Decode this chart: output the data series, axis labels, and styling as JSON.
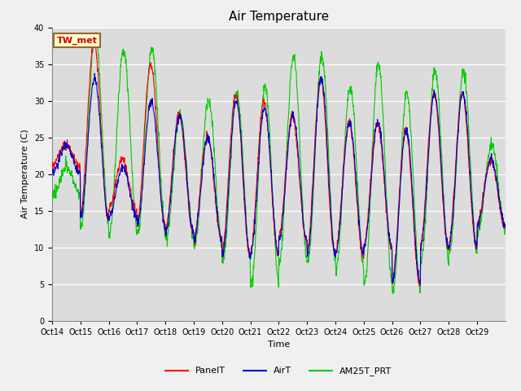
{
  "title": "Air Temperature",
  "ylabel": "Air Temperature (C)",
  "xlabel": "Time",
  "ylim": [
    0,
    40
  ],
  "yticks": [
    0,
    5,
    10,
    15,
    20,
    25,
    30,
    35,
    40
  ],
  "xtick_labels": [
    "Oct 14",
    "Oct 15",
    "Oct 16",
    "Oct 17",
    "Oct 18",
    "Oct 19",
    "Oct 20",
    "Oct 21",
    "Oct 22",
    "Oct 23",
    "Oct 24",
    "Oct 25",
    "Oct 26",
    "Oct 27",
    "Oct 28",
    "Oct 29"
  ],
  "legend_label": "TW_met",
  "line_colors": {
    "PanelT": "#ff0000",
    "AirT": "#0000cc",
    "AM25T_PRT": "#00cc00"
  },
  "bg_color": "#f0f0f0",
  "plot_bg_color": "#dcdcdc",
  "title_fontsize": 11,
  "axis_fontsize": 8,
  "tick_fontsize": 7,
  "legend_box_color": "#ffffcc",
  "legend_box_edgecolor": "#996633",
  "n_days": 16,
  "day_peaks_air": [
    24,
    33,
    21,
    30,
    28,
    25,
    30,
    29,
    28,
    33,
    27,
    27,
    26,
    31,
    31,
    22
  ],
  "day_mins_air": [
    20,
    14,
    14,
    13,
    12,
    11,
    9,
    9,
    11,
    9,
    9,
    10,
    5,
    10,
    10,
    13
  ],
  "day_peaks_panel": [
    24,
    38,
    22,
    35,
    28,
    25,
    31,
    30,
    28,
    33,
    27,
    27,
    26,
    31,
    31,
    22
  ],
  "day_mins_panel": [
    21,
    14,
    15,
    13,
    12,
    11,
    9,
    9,
    11,
    9,
    9,
    10,
    5,
    10,
    10,
    13
  ],
  "day_peaks_am25": [
    21,
    39,
    37,
    37,
    28,
    30,
    31,
    32,
    36,
    36,
    32,
    35,
    31,
    34,
    34,
    24
  ],
  "day_mins_am25": [
    17,
    13,
    12,
    12,
    11,
    10,
    8,
    5,
    8,
    8,
    7,
    5,
    4,
    8,
    9,
    12
  ]
}
